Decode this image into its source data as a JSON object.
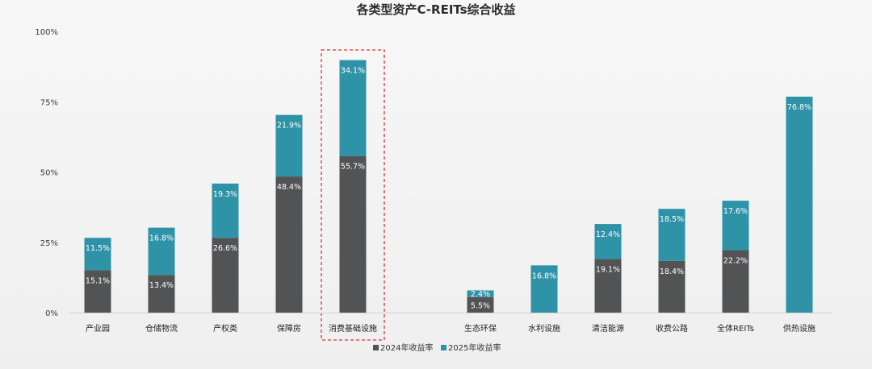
{
  "chart_data": {
    "type": "bar",
    "stacked": true,
    "title": "各类型资产C-REITs综合收益",
    "yticks": [
      "0%",
      "25%",
      "50%",
      "75%",
      "100%"
    ],
    "ylim": [
      0,
      100
    ],
    "categories": [
      "产业园",
      "仓储物流",
      "产权类",
      "保障房",
      "消费基础设施",
      "生态环保",
      "水利设施",
      "清洁能源",
      "收费公路",
      "全体REITs",
      "供热设施"
    ],
    "series": [
      {
        "name": "2024年收益率",
        "color": "#525354",
        "values": [
          15.1,
          13.4,
          26.6,
          48.4,
          55.7,
          5.5,
          null,
          19.1,
          18.4,
          22.2,
          null
        ],
        "labels": [
          "15.1%",
          "13.4%",
          "26.6%",
          "48.4%",
          "55.7%",
          "5.5%",
          null,
          "19.1%",
          "18.4%",
          "22.2%",
          null
        ]
      },
      {
        "name": "2025年收益率",
        "color": "#2f93a8",
        "values": [
          11.5,
          16.8,
          19.3,
          21.9,
          34.1,
          2.4,
          16.8,
          12.4,
          18.5,
          17.6,
          76.8
        ],
        "labels": [
          "11.5%",
          "16.8%",
          "19.3%",
          "21.9%",
          "34.1%",
          "2.4%",
          "16.8%",
          "12.4%",
          "18.5%",
          "17.6%",
          "76.8%"
        ]
      }
    ],
    "highlight_category": "消费基础设施",
    "legend_position": "bottom-center",
    "grid": false
  }
}
